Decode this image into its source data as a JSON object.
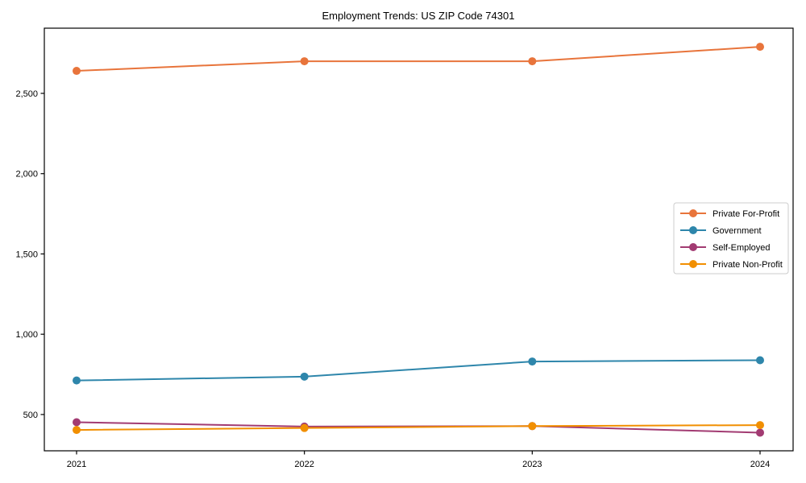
{
  "chart_data": {
    "type": "line",
    "title": "Employment Trends: US ZIP Code 74301",
    "xlabel": "",
    "ylabel": "",
    "categories": [
      "2021",
      "2022",
      "2023",
      "2024"
    ],
    "series": [
      {
        "name": "Private For-Profit",
        "color": "#E8743B",
        "values": [
          2640,
          2700,
          2700,
          2790
        ]
      },
      {
        "name": "Government",
        "color": "#2E86AB",
        "values": [
          712,
          736,
          830,
          838
        ]
      },
      {
        "name": "Self-Employed",
        "color": "#A23B72",
        "values": [
          452,
          425,
          428,
          387
        ]
      },
      {
        "name": "Private Non-Profit",
        "color": "#F18F01",
        "values": [
          404,
          416,
          428,
          434
        ]
      }
    ],
    "yticks": {
      "values": [
        500,
        1000,
        1500,
        2000,
        2500
      ],
      "labels": [
        "500",
        "1,000",
        "1,500",
        "2,000",
        "2,500"
      ]
    },
    "ylim": [
      274,
      2906
    ],
    "grid": false,
    "marker": "circle",
    "legend": {
      "position": "center right",
      "border_color": "#cccccc",
      "background": "#ffffff"
    },
    "axes": {
      "spine_color": "#000000",
      "box": true
    }
  }
}
